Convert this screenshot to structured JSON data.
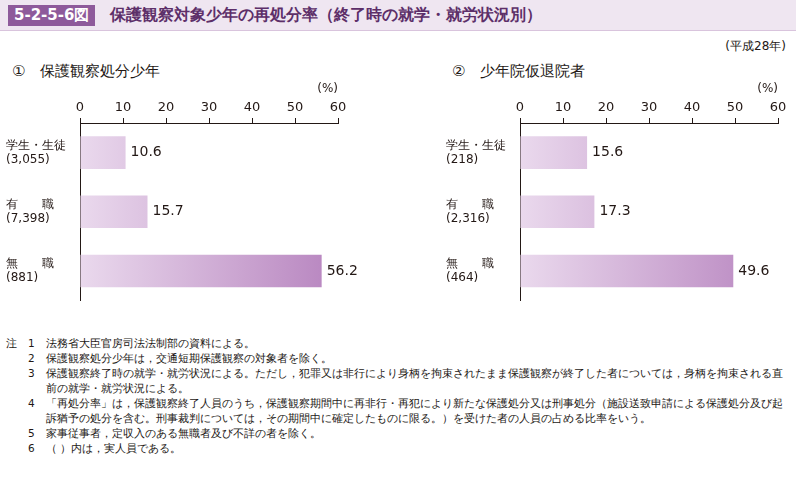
{
  "header": {
    "figure": "5-2-5-6図",
    "title": "保護観察対象少年の再処分率（終了時の就学・就労状況別）",
    "year": "(平成28年)"
  },
  "chart_data": [
    {
      "type": "bar",
      "title": "①　保護観察処分少年",
      "orientation": "horizontal",
      "categories": [
        [
          "学生・生徒",
          "(3,055)"
        ],
        [
          "有　　職",
          "(7,398)"
        ],
        [
          "無　　職",
          "(881)"
        ]
      ],
      "values": [
        10.6,
        15.7,
        56.2
      ],
      "color": "#b784bf",
      "xlabel": "(%)",
      "xlim": [
        0,
        60
      ],
      "xticks": [
        0,
        10,
        20,
        30,
        40,
        50,
        60
      ],
      "grid": false,
      "data_labels": true
    },
    {
      "type": "bar",
      "title": "②　少年院仮退院者",
      "orientation": "horizontal",
      "categories": [
        [
          "学生・生徒",
          "(218)"
        ],
        [
          "有　　職",
          "(2,316)"
        ],
        [
          "無　　職",
          "(464)"
        ]
      ],
      "values": [
        15.6,
        17.3,
        49.6
      ],
      "color": "#b784bf",
      "xlabel": "(%)",
      "xlim": [
        0,
        60
      ],
      "xticks": [
        0,
        10,
        20,
        30,
        40,
        50,
        60
      ],
      "grid": false,
      "data_labels": true
    }
  ],
  "notes": {
    "label": "注",
    "items": [
      {
        "num": "1",
        "text": "法務省大臣官房司法法制部の資料による。"
      },
      {
        "num": "2",
        "text": "保護観察処分少年は，交通短期保護観察の対象者を除く。"
      },
      {
        "num": "3",
        "text": "保護観察終了時の就学・就労状況による。ただし，犯罪又は非行により身柄を拘束されたまま保護観察が終了した者については，身柄を拘束される直前の就学・就労状況による。"
      },
      {
        "num": "4",
        "text": "「再処分率」は，保護観察終了人員のうち，保護観察期間中に再非行・再犯により新たな保護処分又は刑事処分（施設送致申請による保護処分及び起訴猶予の処分を含む。刑事裁判については，その期間中に確定したものに限る。）を受けた者の人員の占める比率をいう。"
      },
      {
        "num": "5",
        "text": "家事従事者，定収入のある無職者及び不詳の者を除く。"
      },
      {
        "num": "6",
        "text": "（ ）内は，実人員である。"
      }
    ]
  }
}
